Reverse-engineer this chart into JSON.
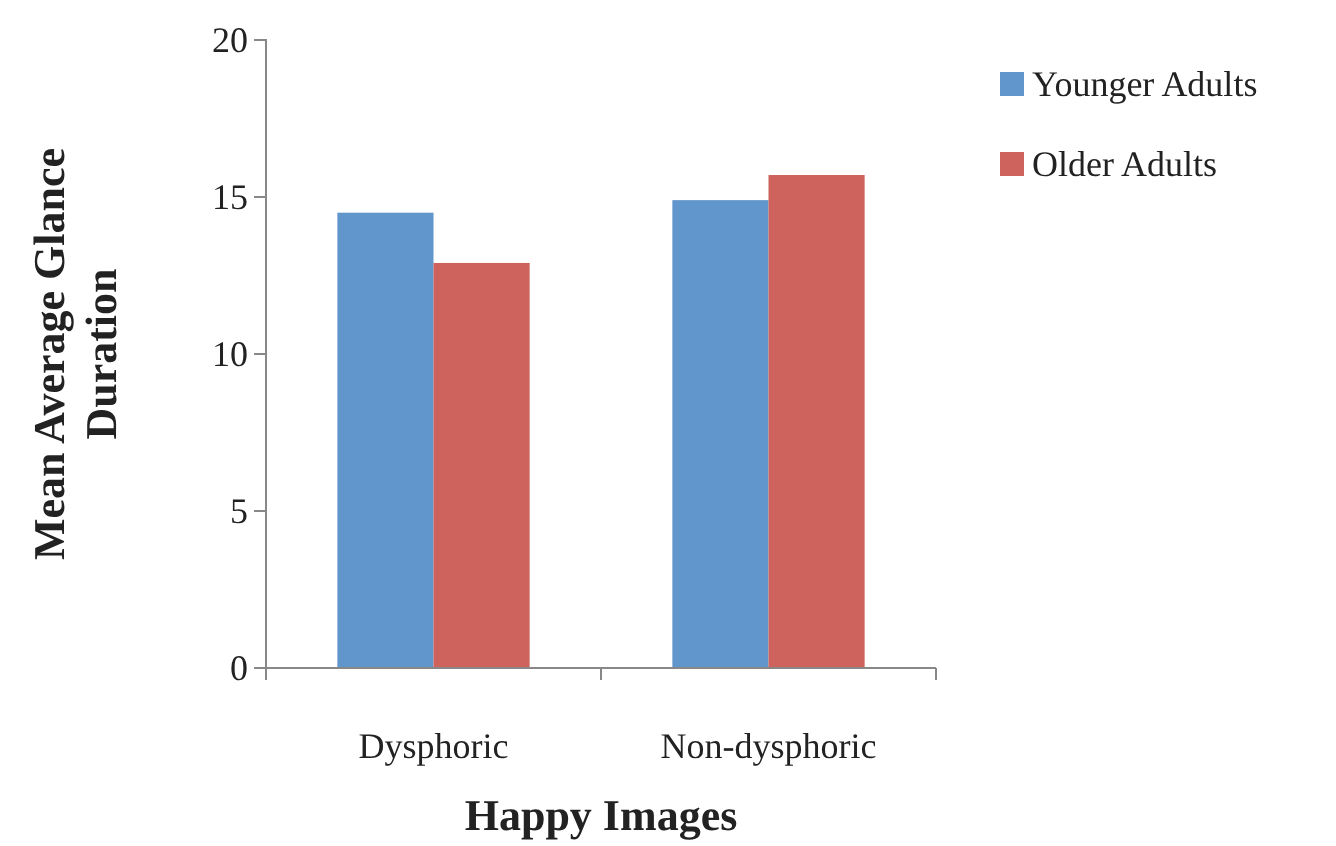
{
  "chart_data": {
    "type": "bar",
    "xlabel": "Happy Images",
    "ylabel": "Mean Average Glance Duration",
    "categories": [
      "Dysphoric",
      "Non-dysphoric"
    ],
    "series": [
      {
        "name": "Younger Adults",
        "color": "#6196cc",
        "values": [
          14.5,
          14.9
        ]
      },
      {
        "name": "Older Adults",
        "color": "#cd635c",
        "values": [
          12.9,
          15.7
        ]
      }
    ],
    "ylim": [
      0,
      20
    ],
    "yticks": [
      0,
      5,
      10,
      15,
      20
    ],
    "grid": false,
    "legend": "right"
  }
}
